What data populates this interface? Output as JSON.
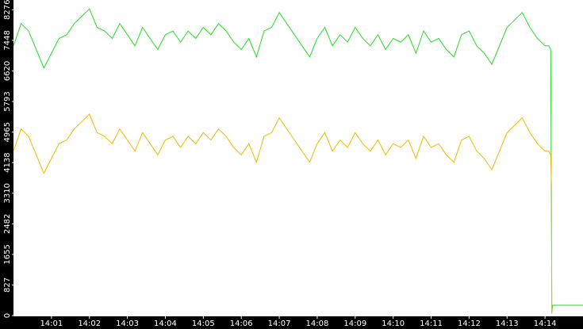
{
  "chart_data": {
    "type": "line",
    "x": [
      0,
      0.2,
      0.4,
      0.6,
      0.8,
      1.0,
      1.2,
      1.4,
      1.6,
      1.8,
      2.0,
      2.2,
      2.4,
      2.6,
      2.8,
      3.0,
      3.2,
      3.4,
      3.6,
      3.8,
      4.0,
      4.2,
      4.4,
      4.6,
      4.8,
      5.0,
      5.2,
      5.4,
      5.6,
      5.8,
      6.0,
      6.2,
      6.4,
      6.6,
      6.8,
      7.0,
      7.2,
      7.4,
      7.6,
      7.8,
      8.0,
      8.2,
      8.4,
      8.6,
      8.8,
      9.0,
      9.2,
      9.4,
      9.6,
      9.8,
      10.0,
      10.2,
      10.4,
      10.6,
      10.8,
      11.0,
      11.2,
      11.4,
      11.6,
      11.8,
      12.0,
      12.2,
      12.4,
      12.6,
      12.8,
      13.0,
      13.2,
      13.4,
      13.6,
      13.8,
      14.0,
      14.1,
      14.15,
      14.17,
      14.18,
      14.2,
      15.0
    ],
    "series": [
      {
        "color": "#22dd22",
        "values": [
          7300,
          7900,
          7700,
          7200,
          6700,
          7100,
          7500,
          7600,
          7900,
          8100,
          8300,
          7800,
          7700,
          7500,
          7900,
          7600,
          7300,
          7800,
          7500,
          7200,
          7600,
          7700,
          7400,
          7700,
          7500,
          7800,
          7600,
          7900,
          7700,
          7400,
          7200,
          7500,
          7000,
          7700,
          7800,
          8200,
          7900,
          7600,
          7300,
          7000,
          7500,
          7800,
          7300,
          7600,
          7400,
          7800,
          7500,
          7300,
          7600,
          7200,
          7500,
          7400,
          7600,
          7100,
          7700,
          7400,
          7500,
          7200,
          7000,
          7600,
          7700,
          7300,
          7100,
          6800,
          7300,
          7800,
          8000,
          8200,
          7800,
          7500,
          7300,
          7300,
          7200,
          2100,
          80,
          280,
          280
        ]
      },
      {
        "color": "#f0b800",
        "values": [
          4450,
          5050,
          4850,
          4350,
          3850,
          4250,
          4650,
          4750,
          5050,
          5250,
          5450,
          4950,
          4850,
          4650,
          5050,
          4750,
          4450,
          4950,
          4650,
          4350,
          4750,
          4850,
          4550,
          4850,
          4650,
          4950,
          4750,
          5050,
          4850,
          4550,
          4350,
          4650,
          4150,
          4850,
          4950,
          5350,
          5050,
          4750,
          4450,
          4150,
          4650,
          4950,
          4450,
          4750,
          4550,
          4950,
          4650,
          4450,
          4750,
          4350,
          4650,
          4550,
          4750,
          4250,
          4850,
          4550,
          4650,
          4350,
          4150,
          4750,
          4850,
          4450,
          4250,
          3950,
          4450,
          4950,
          5150,
          5350,
          4950,
          4650,
          4450,
          4450,
          4350,
          3500,
          50,
          null,
          null
        ]
      }
    ],
    "xlim": [
      0,
      15
    ],
    "xticks": [
      {
        "value": 1,
        "label": "14:01"
      },
      {
        "value": 2,
        "label": "14:02"
      },
      {
        "value": 3,
        "label": "14:03"
      },
      {
        "value": 4,
        "label": "14:04"
      },
      {
        "value": 5,
        "label": "14:05"
      },
      {
        "value": 6,
        "label": "14:06"
      },
      {
        "value": 7,
        "label": "14:07"
      },
      {
        "value": 8,
        "label": "14:08"
      },
      {
        "value": 9,
        "label": "14:09"
      },
      {
        "value": 10,
        "label": "14:10"
      },
      {
        "value": 11,
        "label": "14:11"
      },
      {
        "value": 12,
        "label": "14:12"
      },
      {
        "value": 13,
        "label": "14:13"
      },
      {
        "value": 14,
        "label": "14:14"
      }
    ],
    "ylim": [
      0,
      8540
    ],
    "yticks": [
      0,
      827,
      1655,
      2482,
      3310,
      4138,
      4965,
      5793,
      6620,
      7448,
      8276
    ]
  }
}
